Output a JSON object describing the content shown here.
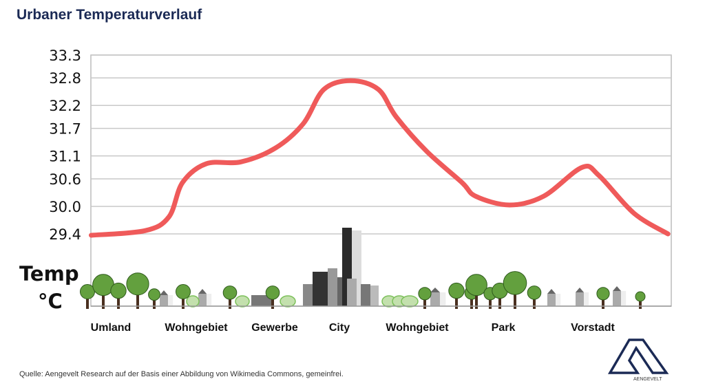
{
  "title": "Urbaner Temperaturverlauf",
  "source": "Quelle: Aengevelt Research auf der Basis einer Abbildung von Wikimedia Commons, gemeinfrei.",
  "logo_text": "AENGEVELT",
  "chart_data": {
    "type": "line",
    "title": "Urbaner Temperaturverlauf",
    "ylabel": "Temp",
    "yunit": "°C",
    "yticks": [
      33.3,
      32.8,
      32.2,
      31.7,
      31.1,
      30.6,
      30.0,
      29.4
    ],
    "ylim": [
      29.4,
      33.3
    ],
    "grid": true,
    "categories": [
      "Umland",
      "Wohngebiet",
      "Gewerbe",
      "City",
      "Wohngebiet",
      "Park",
      "Vorstadt"
    ],
    "series": [
      {
        "color": "#ef5a5a",
        "x": [
          -0.23,
          0.4,
          0.68,
          0.84,
          1.13,
          1.57,
          2.01,
          2.44,
          2.76,
          3.15,
          3.5,
          3.73,
          4.11,
          4.52,
          4.68,
          5.07,
          5.45,
          5.88,
          6.07,
          6.46,
          6.84
        ],
        "y": [
          29.37,
          29.47,
          29.77,
          30.52,
          30.93,
          30.97,
          31.27,
          31.8,
          32.55,
          32.74,
          32.55,
          31.95,
          31.2,
          30.52,
          30.22,
          30.03,
          30.22,
          30.85,
          30.67,
          29.85,
          29.4
        ]
      }
    ]
  }
}
